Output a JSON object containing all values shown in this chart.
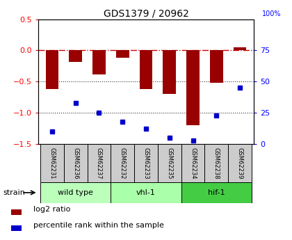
{
  "title": "GDS1379 / 20962",
  "samples": [
    "GSM62231",
    "GSM62236",
    "GSM62237",
    "GSM62232",
    "GSM62233",
    "GSM62235",
    "GSM62234",
    "GSM62238",
    "GSM62239"
  ],
  "log2_ratio": [
    -0.62,
    -0.18,
    -0.38,
    -0.12,
    -0.62,
    -0.7,
    -1.2,
    -0.52,
    0.05
  ],
  "percentile_rank": [
    10,
    33,
    25,
    18,
    12,
    5,
    3,
    23,
    45
  ],
  "groups": [
    {
      "label": "wild type",
      "start": 0,
      "end": 3,
      "color": "#bbffbb"
    },
    {
      "label": "vhl-1",
      "start": 3,
      "end": 6,
      "color": "#aaffaa"
    },
    {
      "label": "hif-1",
      "start": 6,
      "end": 9,
      "color": "#44cc44"
    }
  ],
  "ylim_left": [
    -1.5,
    0.5
  ],
  "ylim_right": [
    0,
    100
  ],
  "yticks_left": [
    -1.5,
    -1.0,
    -0.5,
    0.0,
    0.5
  ],
  "yticks_right": [
    0,
    25,
    50,
    75
  ],
  "bar_color": "#990000",
  "dot_color": "#0000cc",
  "hline_color": "#cc0000",
  "dotted_color": "#333333",
  "strain_label": "strain",
  "legend_bar": "log2 ratio",
  "legend_dot": "percentile rank within the sample",
  "label_box_color": "#cccccc",
  "fig_bg": "#ffffff"
}
